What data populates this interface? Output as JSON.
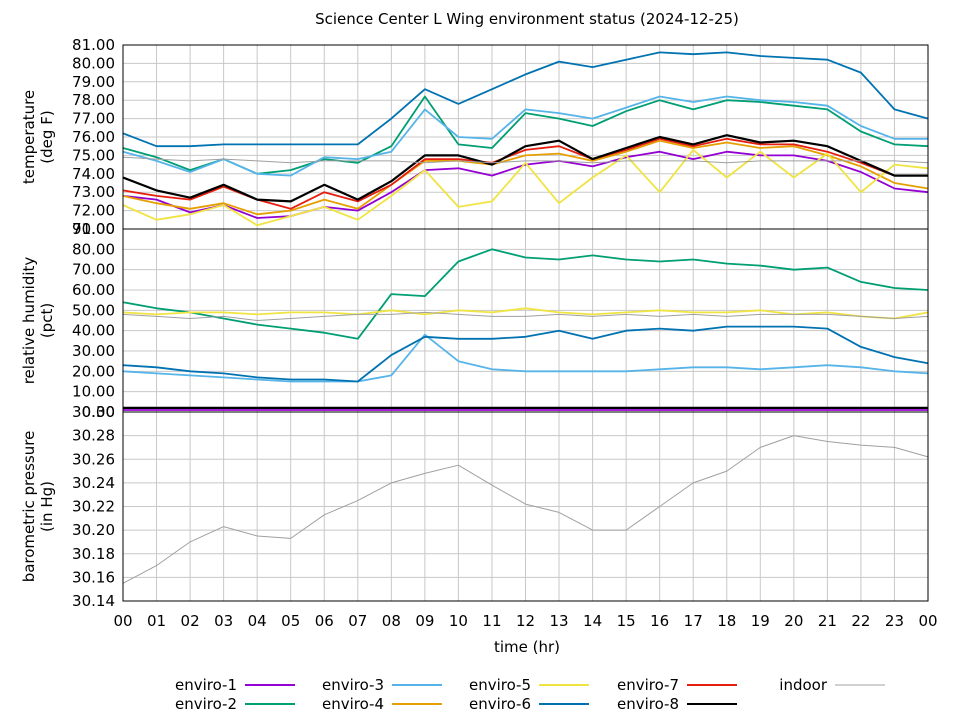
{
  "chart_data": {
    "type": "line",
    "title": "Science Center L Wing environment status (2024-12-25)",
    "xlabel": "time (hr)",
    "x_ticks": [
      "00",
      "01",
      "02",
      "03",
      "04",
      "05",
      "06",
      "07",
      "08",
      "09",
      "10",
      "11",
      "12",
      "13",
      "14",
      "15",
      "16",
      "17",
      "18",
      "19",
      "20",
      "21",
      "22",
      "23",
      "00"
    ],
    "xlim": [
      0,
      24
    ],
    "grid": true,
    "legend_position": "bottom",
    "legend": [
      {
        "key": "enviro1",
        "label": "enviro-1",
        "color": "#9400d3"
      },
      {
        "key": "enviro2",
        "label": "enviro-2",
        "color": "#009e73"
      },
      {
        "key": "enviro3",
        "label": "enviro-3",
        "color": "#56b4e9"
      },
      {
        "key": "enviro4",
        "label": "enviro-4",
        "color": "#e69f00"
      },
      {
        "key": "enviro5",
        "label": "enviro-5",
        "color": "#f0e442"
      },
      {
        "key": "enviro6",
        "label": "enviro-6",
        "color": "#0072b2"
      },
      {
        "key": "enviro7",
        "label": "enviro-7",
        "color": "#e51e10"
      },
      {
        "key": "enviro8",
        "label": "enviro-8",
        "color": "#000000"
      },
      {
        "key": "indoor",
        "label": "indoor",
        "color": "#a0a0a0"
      }
    ],
    "panels": [
      {
        "id": "temperature",
        "ylabel": [
          "temperature",
          "(deg F)"
        ],
        "ylim": [
          71,
          81
        ],
        "y_ticks": [
          "71.00",
          "72.00",
          "73.00",
          "74.00",
          "75.00",
          "76.00",
          "77.00",
          "78.00",
          "79.00",
          "80.00",
          "81.00"
        ],
        "x": [
          0,
          1,
          2,
          3,
          4,
          5,
          6,
          7,
          8,
          9,
          10,
          11,
          12,
          13,
          14,
          15,
          16,
          17,
          18,
          19,
          20,
          21,
          22,
          23,
          24
        ],
        "series": [
          {
            "key": "enviro1",
            "values": [
              72.8,
              72.6,
              71.9,
              72.3,
              71.6,
              71.7,
              72.2,
              72.0,
              73.0,
              74.2,
              74.3,
              73.9,
              74.5,
              74.7,
              74.4,
              74.9,
              75.2,
              74.8,
              75.2,
              75.0,
              75.0,
              74.7,
              74.1,
              73.2,
              73.0
            ]
          },
          {
            "key": "enviro2",
            "values": [
              75.4,
              74.9,
              74.2,
              74.8,
              74.0,
              74.2,
              74.8,
              74.6,
              75.5,
              78.2,
              75.6,
              75.4,
              77.3,
              77.0,
              76.6,
              77.4,
              78.0,
              77.5,
              78.0,
              77.9,
              77.7,
              77.5,
              76.3,
              75.6,
              75.5
            ]
          },
          {
            "key": "enviro3",
            "values": [
              75.2,
              74.7,
              74.1,
              74.8,
              74.0,
              73.9,
              74.9,
              74.8,
              75.2,
              77.5,
              76.0,
              75.9,
              77.5,
              77.3,
              77.0,
              77.6,
              78.2,
              77.9,
              78.2,
              78.0,
              77.9,
              77.7,
              76.6,
              75.9,
              75.9
            ]
          },
          {
            "key": "enviro4",
            "values": [
              72.8,
              72.4,
              72.1,
              72.4,
              71.8,
              72.0,
              72.6,
              72.1,
              73.4,
              74.7,
              74.7,
              74.5,
              75.0,
              75.1,
              74.7,
              75.2,
              75.8,
              75.4,
              75.7,
              75.4,
              75.5,
              75.0,
              74.4,
              73.5,
              73.2
            ]
          },
          {
            "key": "enviro5",
            "values": [
              72.3,
              71.5,
              71.8,
              72.3,
              71.2,
              71.7,
              72.2,
              71.5,
              72.8,
              74.2,
              72.2,
              72.5,
              74.6,
              72.4,
              73.8,
              75.0,
              73.0,
              75.3,
              73.8,
              75.2,
              73.8,
              75.1,
              73.0,
              74.5,
              74.3
            ]
          },
          {
            "key": "enviro6",
            "values": [
              76.2,
              75.5,
              75.5,
              75.6,
              75.6,
              75.6,
              75.6,
              75.6,
              77.0,
              78.6,
              77.8,
              78.6,
              79.4,
              80.1,
              79.8,
              80.2,
              80.6,
              80.5,
              80.6,
              80.4,
              80.3,
              80.2,
              79.5,
              77.5,
              77.0
            ]
          },
          {
            "key": "enviro7",
            "values": [
              73.1,
              72.8,
              72.6,
              73.3,
              72.6,
              72.1,
              73.0,
              72.5,
              73.4,
              74.8,
              74.8,
              74.6,
              75.3,
              75.5,
              74.8,
              75.3,
              75.9,
              75.5,
              75.9,
              75.6,
              75.6,
              75.2,
              74.6,
              73.9,
              73.9
            ]
          },
          {
            "key": "enviro8",
            "values": [
              73.8,
              73.1,
              72.7,
              73.4,
              72.6,
              72.5,
              73.4,
              72.6,
              73.6,
              75.0,
              75.0,
              74.5,
              75.5,
              75.8,
              74.8,
              75.4,
              76.0,
              75.6,
              76.1,
              75.7,
              75.8,
              75.5,
              74.7,
              73.9,
              73.9
            ]
          },
          {
            "key": "indoor",
            "values": [
              74.9,
              74.8,
              74.7,
              74.8,
              74.7,
              74.6,
              74.7,
              74.7,
              74.7,
              74.6,
              74.7,
              74.6,
              74.7,
              74.7,
              74.6,
              74.7,
              74.7,
              74.7,
              74.6,
              74.7,
              74.7,
              74.7,
              74.7,
              74.7,
              74.6
            ]
          }
        ]
      },
      {
        "id": "humidity",
        "ylabel": [
          "relative humidity",
          "(pct)"
        ],
        "ylim": [
          0,
          90
        ],
        "y_ticks": [
          "0.00",
          "10.00",
          "20.00",
          "30.00",
          "40.00",
          "50.00",
          "60.00",
          "70.00",
          "80.00",
          "90.00"
        ],
        "x": [
          0,
          1,
          2,
          3,
          4,
          5,
          6,
          7,
          8,
          9,
          10,
          11,
          12,
          13,
          14,
          15,
          16,
          17,
          18,
          19,
          20,
          21,
          22,
          23,
          24
        ],
        "series": [
          {
            "key": "enviro1",
            "values": [
              1,
              1,
              1,
              1,
              1,
              1,
              1,
              1,
              1,
              1,
              1,
              1,
              1,
              1,
              1,
              1,
              1,
              1,
              1,
              1,
              1,
              1,
              1,
              1,
              1
            ]
          },
          {
            "key": "enviro2",
            "values": [
              54,
              51,
              49,
              46,
              43,
              41,
              39,
              36,
              58,
              57,
              74,
              80,
              76,
              75,
              77,
              75,
              74,
              75,
              73,
              72,
              70,
              71,
              64,
              61,
              60
            ]
          },
          {
            "key": "enviro3",
            "values": [
              20,
              19,
              18,
              17,
              16,
              15,
              15,
              15,
              18,
              38,
              25,
              21,
              20,
              20,
              20,
              20,
              21,
              22,
              22,
              21,
              22,
              23,
              22,
              20,
              19
            ]
          },
          {
            "key": "enviro4",
            "values": [
              2,
              2,
              2,
              2,
              2,
              2,
              2,
              2,
              2,
              2,
              2,
              2,
              2,
              2,
              2,
              2,
              2,
              2,
              2,
              2,
              2,
              2,
              2,
              2,
              2
            ]
          },
          {
            "key": "enviro5",
            "values": [
              49,
              48,
              49,
              49,
              48,
              49,
              49,
              48,
              50,
              48,
              50,
              49,
              51,
              49,
              48,
              49,
              50,
              49,
              49,
              50,
              48,
              49,
              47,
              46,
              49
            ]
          },
          {
            "key": "enviro6",
            "values": [
              23,
              22,
              20,
              19,
              17,
              16,
              16,
              15,
              28,
              37,
              36,
              36,
              37,
              40,
              36,
              40,
              41,
              40,
              42,
              42,
              42,
              41,
              32,
              27,
              24
            ]
          },
          {
            "key": "enviro7",
            "values": [
              2,
              2,
              2,
              2,
              2,
              2,
              2,
              2,
              2,
              2,
              2,
              2,
              2,
              2,
              2,
              2,
              2,
              2,
              2,
              2,
              2,
              2,
              2,
              2,
              2
            ]
          },
          {
            "key": "enviro8",
            "values": [
              2,
              2,
              2,
              2,
              2,
              2,
              2,
              2,
              2,
              2,
              2,
              2,
              2,
              2,
              2,
              2,
              2,
              2,
              2,
              2,
              2,
              2,
              2,
              2,
              2
            ]
          },
          {
            "key": "indoor",
            "values": [
              48,
              47,
              46,
              47,
              45,
              46,
              47,
              48,
              48,
              49,
              48,
              47,
              47,
              48,
              47,
              48,
              47,
              48,
              47,
              48,
              48,
              48,
              47,
              46,
              47
            ]
          }
        ]
      },
      {
        "id": "pressure",
        "ylabel": [
          "barometric pressure",
          "(in Hg)"
        ],
        "ylim": [
          30.14,
          30.3
        ],
        "y_ticks": [
          "30.14",
          "30.16",
          "30.18",
          "30.20",
          "30.22",
          "30.24",
          "30.26",
          "30.28",
          "30.30"
        ],
        "x": [
          0,
          1,
          2,
          3,
          4,
          5,
          6,
          7,
          8,
          9,
          10,
          11,
          12,
          13,
          14,
          15,
          16,
          17,
          18,
          19,
          20,
          21,
          22,
          23,
          24
        ],
        "series": [
          {
            "key": "indoor",
            "values": [
              30.155,
              30.17,
              30.19,
              30.203,
              30.195,
              30.193,
              30.213,
              30.225,
              30.24,
              30.248,
              30.255,
              30.238,
              30.222,
              30.215,
              30.2,
              30.2,
              30.22,
              30.24,
              30.25,
              30.27,
              30.28,
              30.275,
              30.272,
              30.27,
              30.262
            ]
          }
        ]
      }
    ]
  }
}
